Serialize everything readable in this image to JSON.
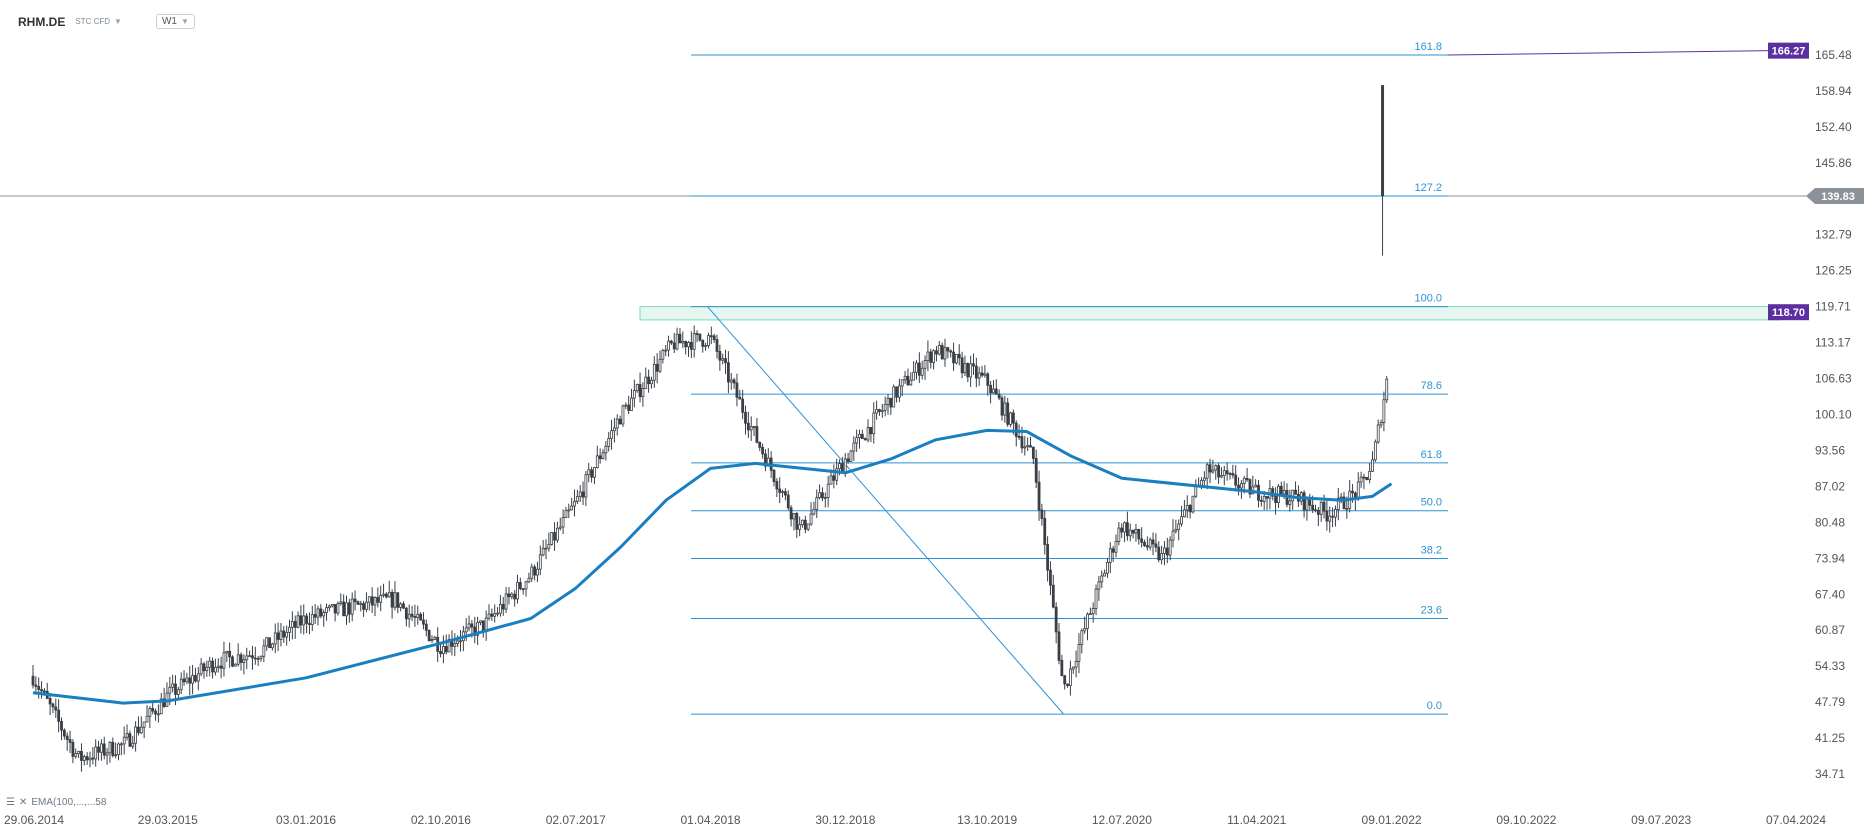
{
  "header": {
    "symbol": "RHM.DE",
    "instrument_type": "STC CFD",
    "timeframe": "W1",
    "dropdown_icon": "chevron-down-icon"
  },
  "legend": {
    "text": "EMA(100,...,...58",
    "icons": [
      "menu-icon",
      "close-icon"
    ]
  },
  "chart_data": {
    "type": "candlestick",
    "title": "",
    "x_tick_labels": [
      "29.06.2014",
      "29.03.2015",
      "03.01.2016",
      "02.10.2016",
      "02.07.2017",
      "01.04.2018",
      "30.12.2018",
      "13.10.2019",
      "12.07.2020",
      "11.04.2021",
      "09.01.2022",
      "09.10.2022",
      "09.07.2023",
      "07.04.2024"
    ],
    "y_tick_labels": [
      165.48,
      158.94,
      152.4,
      145.86,
      139.83,
      132.79,
      126.25,
      119.71,
      113.17,
      106.63,
      100.1,
      93.56,
      87.02,
      80.48,
      73.94,
      67.4,
      60.87,
      54.33,
      47.79,
      41.25,
      34.71
    ],
    "ylim": [
      34.71,
      168.0
    ],
    "current_price": {
      "value": 139.83,
      "label": "139.83",
      "color": "#8a9199"
    },
    "price_tags": [
      {
        "value": 166.27,
        "label": "166.27",
        "color": "#5b2fa0"
      },
      {
        "value": 118.7,
        "label": "118.70",
        "color": "#5b2fa0"
      }
    ],
    "resistance_zone": [
      117.3,
      119.71
    ],
    "fibonacci": {
      "color": "#2b93d6",
      "levels": [
        {
          "ratio": "161.8",
          "price": 165.48
        },
        {
          "ratio": "127.2",
          "price": 139.83
        },
        {
          "ratio": "100.0",
          "price": 119.71
        },
        {
          "ratio": "78.6",
          "price": 103.8
        },
        {
          "ratio": "61.8",
          "price": 91.3
        },
        {
          "ratio": "50.0",
          "price": 82.6
        },
        {
          "ratio": "38.2",
          "price": 73.9
        },
        {
          "ratio": "23.6",
          "price": 63.0
        },
        {
          "ratio": "0.0",
          "price": 45.6
        }
      ],
      "swing_high": {
        "date": "01.04.2018",
        "price": 119.71
      },
      "swing_low": {
        "date": "16.03.2020",
        "price": 45.6
      }
    },
    "ema": {
      "name": "EMA(100)",
      "color": "#1a7fc1",
      "points": [
        [
          "29.06.2014",
          49.5
        ],
        [
          "29.12.2014",
          47.6
        ],
        [
          "29.03.2015",
          48.0
        ],
        [
          "03.01.2016",
          52.2
        ],
        [
          "02.10.2016",
          58.5
        ],
        [
          "02.04.2017",
          63.0
        ],
        [
          "02.07.2017",
          68.5
        ],
        [
          "01.10.2017",
          76.0
        ],
        [
          "01.01.2018",
          84.5
        ],
        [
          "01.04.2018",
          90.3
        ],
        [
          "01.07.2018",
          91.2
        ],
        [
          "30.12.2018",
          89.5
        ],
        [
          "01.04.2019",
          92.0
        ],
        [
          "01.07.2019",
          95.5
        ],
        [
          "13.10.2019",
          97.2
        ],
        [
          "01.01.2020",
          97.0
        ],
        [
          "01.04.2020",
          92.5
        ],
        [
          "12.07.2020",
          88.5
        ],
        [
          "11.04.2021",
          86.0
        ],
        [
          "01.07.2021",
          85.0
        ],
        [
          "01.10.2021",
          84.5
        ],
        [
          "01.12.2021",
          85.2
        ],
        [
          "09.01.2022",
          87.5
        ]
      ]
    },
    "candles": {
      "color": "#3a3f45",
      "anchors": [
        [
          "29.06.2014",
          52.5
        ],
        [
          "29.09.2014",
          37.5
        ],
        [
          "29.12.2014",
          40.0
        ],
        [
          "29.03.2015",
          49.0
        ],
        [
          "01.07.2015",
          55.0
        ],
        [
          "01.10.2015",
          57.0
        ],
        [
          "03.01.2016",
          63.0
        ],
        [
          "01.04.2016",
          65.0
        ],
        [
          "01.07.2016",
          66.5
        ],
        [
          "02.10.2016",
          58.0
        ],
        [
          "01.01.2017",
          62.0
        ],
        [
          "02.04.2017",
          71.0
        ],
        [
          "02.07.2017",
          84.0
        ],
        [
          "01.10.2017",
          100.0
        ],
        [
          "15.01.2018",
          113.0
        ],
        [
          "01.04.2018",
          114.0
        ],
        [
          "01.07.2018",
          96.0
        ],
        [
          "01.10.2018",
          79.0
        ],
        [
          "30.12.2018",
          92.0
        ],
        [
          "01.04.2019",
          103.0
        ],
        [
          "01.07.2019",
          112.0
        ],
        [
          "13.10.2019",
          106.0
        ],
        [
          "15.01.2020",
          92.0
        ],
        [
          "16.03.2020",
          50.0
        ],
        [
          "01.07.2020",
          78.0
        ],
        [
          "12.07.2020",
          80.0
        ],
        [
          "01.10.2020",
          74.0
        ],
        [
          "01.01.2021",
          90.0
        ],
        [
          "11.04.2021",
          86.0
        ],
        [
          "01.07.2021",
          85.0
        ],
        [
          "01.09.2021",
          82.0
        ],
        [
          "01.11.2021",
          86.0
        ],
        [
          "01.12.2021",
          91.0
        ],
        [
          "01.01.2022",
          107.0
        ]
      ],
      "last_candle": {
        "date": "09.01.2022",
        "open": 139.83,
        "high": 160.0,
        "low": 129.0,
        "close": 139.83
      }
    }
  }
}
